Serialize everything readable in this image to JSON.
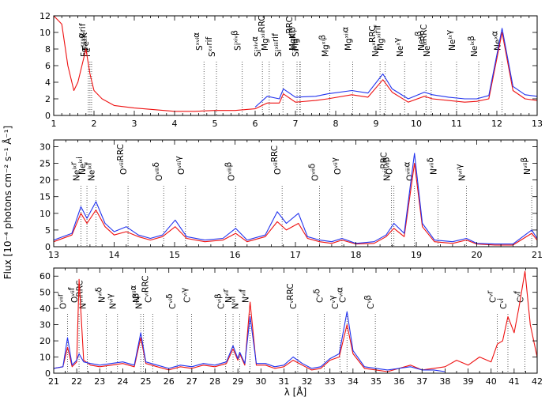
{
  "chart_data": {
    "type": "line",
    "xlabel": "λ [Å]",
    "ylabel": "Flux [10⁻⁴ photons cm⁻² s⁻¹ Å⁻¹]",
    "colors": {
      "series_red": "#ee1111",
      "series_blue": "#2233ee",
      "axis": "#000000"
    },
    "panels": [
      {
        "xlim": [
          1,
          13
        ],
        "ylim": [
          0,
          12
        ],
        "xticks": [
          "1",
          "2",
          "3",
          "4",
          "5",
          "6",
          "7",
          "8",
          "9",
          "10",
          "11",
          "12",
          "13"
        ],
        "yticks": [
          "0",
          "2",
          "4",
          "6",
          "8",
          "10",
          "12"
        ],
        "series": [
          {
            "color": "red",
            "x": [
              1.0,
              1.2,
              1.35,
              1.5,
              1.6,
              1.7,
              1.8,
              1.9,
              2.0,
              2.2,
              2.5,
              3.0,
              3.5,
              4.0,
              4.5,
              5.0,
              5.5,
              6.0,
              6.3,
              6.6,
              6.7,
              7.0,
              7.5,
              7.8,
              8.4,
              8.8,
              9.17,
              9.4,
              9.8,
              10.2,
              10.4,
              10.8,
              11.2,
              11.5,
              11.8,
              12.13,
              12.4,
              12.7,
              13.0
            ],
            "y": [
              12,
              11,
              6,
              3,
              4,
              6,
              8,
              5,
              3,
              2,
              1.2,
              0.9,
              0.7,
              0.5,
              0.5,
              0.6,
              0.6,
              0.8,
              1.5,
              1.5,
              2.6,
              1.6,
              1.8,
              2.0,
              2.5,
              2.2,
              4.3,
              2.8,
              1.6,
              2.3,
              2.0,
              1.8,
              1.6,
              1.7,
              2.0,
              10.0,
              3.0,
              2.0,
              1.8
            ]
          },
          {
            "color": "blue",
            "x": [
              6.0,
              6.3,
              6.6,
              6.7,
              7.0,
              7.5,
              7.8,
              8.4,
              8.8,
              9.17,
              9.4,
              9.8,
              10.2,
              10.4,
              10.8,
              11.2,
              11.5,
              11.8,
              12.13,
              12.4,
              12.7,
              13.0
            ],
            "y": [
              1.0,
              2.3,
              2.0,
              3.2,
              2.2,
              2.3,
              2.6,
              3.0,
              2.7,
              5.0,
              3.2,
              2.0,
              2.8,
              2.5,
              2.2,
              2.0,
              2.0,
              2.4,
              10.5,
              3.5,
              2.5,
              2.3
            ]
          }
        ],
        "lines": [
          {
            "label": "Fe^{xxv}α",
            "x": 1.86
          },
          {
            "label": "Fe^{xxv}rif",
            "x": 1.9
          },
          {
            "label": "Fe^{i-xx}K",
            "x": 1.94
          },
          {
            "label": "S^{xvi}α",
            "x": 4.73
          },
          {
            "label": "S^{xv}rif",
            "x": 5.04
          },
          {
            "label": "Si^{xiv}β",
            "x": 5.68
          },
          {
            "label": "Si^{xiv}α",
            "x": 6.18
          },
          {
            "label": "Mg^{xii}RRC",
            "x": 6.35
          },
          {
            "label": "Si^{xiii}rif",
            "x": 6.69
          },
          {
            "label": "Mg^{xi}RRC",
            "x": 7.04
          },
          {
            "label": "Si^{ii-xii}K",
            "x": 7.12
          },
          {
            "label": "Mg^{xii}β",
            "x": 7.11
          },
          {
            "label": "Mg^{xi}β",
            "x": 7.85
          },
          {
            "label": "Mg^{xii}α",
            "x": 8.42
          },
          {
            "label": "Ne^{x}RRC",
            "x": 9.1
          },
          {
            "label": "Mg^{xi}rif",
            "x": 9.23
          },
          {
            "label": "Ne^{x}γ",
            "x": 9.71
          },
          {
            "label": "Ne^{x}β",
            "x": 10.24
          },
          {
            "label": "Ne^{ix}RRC",
            "x": 10.37
          },
          {
            "label": "Ne^{ix}γ",
            "x": 11.0
          },
          {
            "label": "Ne^{ix}β",
            "x": 11.55
          },
          {
            "label": "Ne^{x}α",
            "x": 12.13
          }
        ]
      },
      {
        "xlim": [
          13,
          21
        ],
        "ylim": [
          0,
          32
        ],
        "xticks": [
          "13",
          "14",
          "15",
          "16",
          "17",
          "18",
          "19",
          "20",
          "21"
        ],
        "yticks": [
          "0",
          "5",
          "10",
          "15",
          "20",
          "25",
          "30"
        ],
        "series": [
          {
            "color": "red",
            "x": [
              13.0,
              13.3,
              13.45,
              13.55,
              13.7,
              13.85,
              14.0,
              14.2,
              14.4,
              14.6,
              14.8,
              15.01,
              15.2,
              15.5,
              15.8,
              16.01,
              16.2,
              16.5,
              16.7,
              16.85,
              17.05,
              17.2,
              17.4,
              17.6,
              17.77,
              18.0,
              18.3,
              18.5,
              18.63,
              18.8,
              18.97,
              19.1,
              19.3,
              19.6,
              19.83,
              20.0,
              20.3,
              20.6,
              20.91,
              21.0
            ],
            "y": [
              1.5,
              3.5,
              10.0,
              7.0,
              11.0,
              6.0,
              3.5,
              4.5,
              3.0,
              2.0,
              3.0,
              6.0,
              2.5,
              1.5,
              2.0,
              4.0,
              1.5,
              3.0,
              7.5,
              5.0,
              7.0,
              2.5,
              1.5,
              1.0,
              2.0,
              0.8,
              1.0,
              3.0,
              5.5,
              3.0,
              25.0,
              6.0,
              1.5,
              1.0,
              2.0,
              0.8,
              0.5,
              0.5,
              4.0,
              2.0
            ]
          },
          {
            "color": "blue",
            "x": [
              13.0,
              13.3,
              13.45,
              13.55,
              13.7,
              13.85,
              14.0,
              14.2,
              14.4,
              14.6,
              14.8,
              15.01,
              15.2,
              15.5,
              15.8,
              16.01,
              16.2,
              16.5,
              16.7,
              16.85,
              17.05,
              17.2,
              17.4,
              17.6,
              17.77,
              18.0,
              18.3,
              18.5,
              18.63,
              18.8,
              18.97,
              19.1,
              19.3,
              19.6,
              19.83,
              20.0,
              20.3,
              20.6,
              20.91,
              21.0
            ],
            "y": [
              2.0,
              4.0,
              12.0,
              8.5,
              13.5,
              7.0,
              4.5,
              6.0,
              3.5,
              2.5,
              3.5,
              8.0,
              3.0,
              2.0,
              2.5,
              5.5,
              2.0,
              3.5,
              10.5,
              7.0,
              10.0,
              3.0,
              2.0,
              1.5,
              2.5,
              1.0,
              1.5,
              3.5,
              7.0,
              4.0,
              28.0,
              7.0,
              2.0,
              1.5,
              2.5,
              1.0,
              0.8,
              0.8,
              5.0,
              2.5
            ]
          }
        ],
        "lines": [
          {
            "label": "Ne^{ix}r",
            "x": 13.45
          },
          {
            "label": "Ne^{ix}i",
            "x": 13.55
          },
          {
            "label": "Ne^{ix}f",
            "x": 13.7
          },
          {
            "label": "O^{viii}RRC",
            "x": 14.23
          },
          {
            "label": "O^{viii}δ",
            "x": 14.82
          },
          {
            "label": "O^{viii}γ",
            "x": 15.18
          },
          {
            "label": "O^{viii}β",
            "x": 16.01
          },
          {
            "label": "O^{vii}RRC",
            "x": 16.78
          },
          {
            "label": "O^{vii}δ",
            "x": 17.4
          },
          {
            "label": "O^{vii}γ",
            "x": 17.77
          },
          {
            "label": "N^{vii}RRC",
            "x": 18.59
          },
          {
            "label": "O^{vii}β",
            "x": 18.63
          },
          {
            "label": "O^{viii}α",
            "x": 18.97
          },
          {
            "label": "N^{vii}δ",
            "x": 19.36
          },
          {
            "label": "N^{vii}γ",
            "x": 19.83
          },
          {
            "label": "N^{vii}β",
            "x": 20.91
          }
        ]
      },
      {
        "xlim": [
          21,
          42
        ],
        "ylim": [
          0,
          65
        ],
        "xticks": [
          "21",
          "22",
          "23",
          "24",
          "25",
          "26",
          "27",
          "28",
          "29",
          "30",
          "31",
          "32",
          "33",
          "34",
          "35",
          "36",
          "37",
          "38",
          "39",
          "40",
          "41",
          "42"
        ],
        "yticks": [
          "0",
          "10",
          "20",
          "30",
          "40",
          "50",
          "60"
        ],
        "series": [
          {
            "color": "red",
            "x": [
              21.0,
              21.4,
              21.6,
              21.8,
              22.0,
              22.1,
              22.3,
              22.6,
              23.0,
              23.5,
              24.0,
              24.5,
              24.78,
              25.0,
              25.5,
              26.0,
              26.5,
              27.0,
              27.5,
              28.0,
              28.5,
              28.79,
              29.0,
              29.08,
              29.3,
              29.53,
              29.8,
              30.2,
              30.6,
              31.0,
              31.4,
              31.8,
              32.2,
              32.6,
              33.0,
              33.4,
              33.74,
              34.0,
              34.5,
              35.0,
              35.5,
              36.0,
              36.5,
              37.0,
              37.5,
              38.0,
              38.5,
              39.0,
              39.5,
              40.0,
              40.27,
              40.5,
              40.73,
              41.0,
              41.2,
              41.47,
              41.7,
              42.0
            ],
            "y": [
              3,
              4,
              16,
              4,
              7,
              58,
              8,
              5,
              4,
              5,
              6,
              4,
              22,
              6,
              4,
              2,
              4,
              3,
              5,
              4,
              6,
              15,
              8,
              12,
              5,
              44,
              5,
              5,
              3,
              4,
              8,
              5,
              2,
              3,
              8,
              10,
              30,
              12,
              3,
              2,
              1,
              3,
              5,
              2,
              3,
              4,
              8,
              5,
              10,
              7,
              18,
              20,
              35,
              25,
              40,
              63,
              30,
              10
            ]
          },
          {
            "color": "blue",
            "x": [
              21.0,
              21.4,
              21.6,
              21.8,
              22.0,
              22.1,
              22.3,
              22.6,
              23.0,
              23.5,
              24.0,
              24.5,
              24.78,
              25.0,
              25.5,
              26.0,
              26.5,
              27.0,
              27.5,
              28.0,
              28.5,
              28.79,
              29.0,
              29.08,
              29.3,
              29.53,
              29.8,
              30.2,
              30.6,
              31.0,
              31.4,
              31.8,
              32.2,
              32.6,
              33.0,
              33.4,
              33.74,
              34.0,
              34.5,
              35.0,
              35.5,
              36.0,
              36.5,
              37.0,
              37.5,
              38.0
            ],
            "y": [
              3,
              4,
              22,
              5,
              8,
              12,
              7,
              6,
              5,
              6,
              7,
              5,
              25,
              7,
              5,
              3,
              5,
              4,
              6,
              5,
              7,
              17,
              9,
              13,
              6,
              35,
              6,
              6,
              4,
              5,
              10,
              6,
              3,
              4,
              9,
              12,
              38,
              14,
              4,
              3,
              2,
              3,
              4,
              2,
              2,
              1
            ]
          }
        ],
        "lines": [
          {
            "label": "O^{vii}r",
            "x": 21.6
          },
          {
            "label": "O^{vii}f",
            "x": 22.1
          },
          {
            "label": "N^{vii}RRC",
            "x": 22.46
          },
          {
            "label": "N^{vi}δ",
            "x": 23.28
          },
          {
            "label": "N^{vi}γ",
            "x": 23.77
          },
          {
            "label": "N^{vii}α",
            "x": 24.78
          },
          {
            "label": "N^{vi}β",
            "x": 24.9
          },
          {
            "label": "C^{vi}RRC",
            "x": 25.3
          },
          {
            "label": "C^{vi}δ",
            "x": 26.36
          },
          {
            "label": "C^{vi}γ",
            "x": 26.99
          },
          {
            "label": "C^{vi}β",
            "x": 28.47
          },
          {
            "label": "N^{vi}r",
            "x": 28.79
          },
          {
            "label": "N^{vi}i",
            "x": 29.08
          },
          {
            "label": "N^{vi}f",
            "x": 29.53
          },
          {
            "label": "C^{v}RRC",
            "x": 31.6
          },
          {
            "label": "C^{v}δ",
            "x": 32.75
          },
          {
            "label": "C^{v}γ",
            "x": 33.43
          },
          {
            "label": "C^{vi}α",
            "x": 33.74
          },
          {
            "label": "C^{v}β",
            "x": 34.97
          },
          {
            "label": "C^{v}r",
            "x": 40.27
          },
          {
            "label": "C^{v}i",
            "x": 40.73
          },
          {
            "label": "C^{v}f",
            "x": 41.47
          }
        ]
      }
    ]
  }
}
